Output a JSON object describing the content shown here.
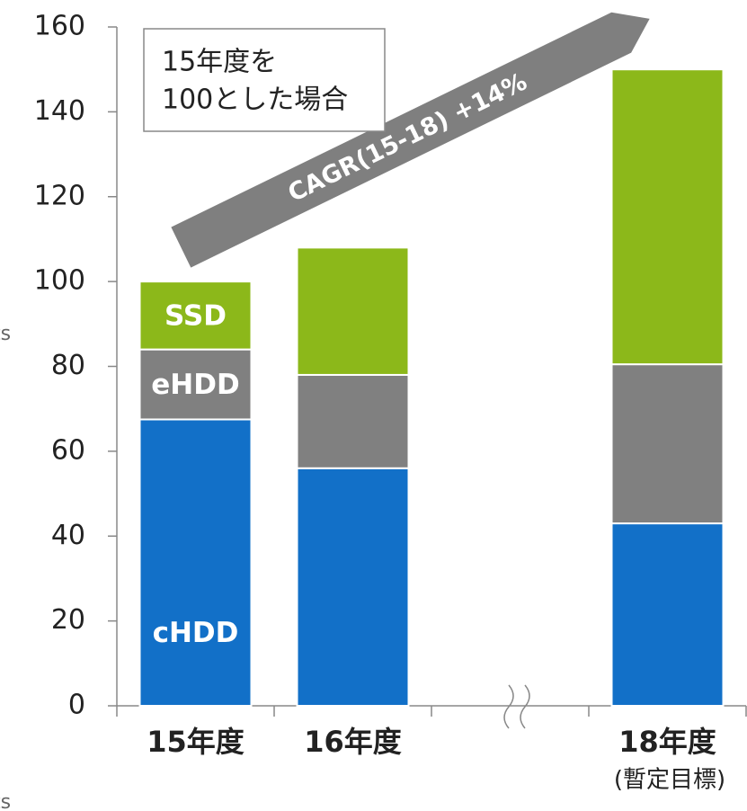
{
  "chart_data": {
    "type": "stacked_bar",
    "categories": [
      "15年度",
      "16年度",
      null,
      "18年度"
    ],
    "series": [
      {
        "name": "cHDD",
        "color": "#1270c8",
        "values": [
          67.5,
          56,
          null,
          43
        ]
      },
      {
        "name": "eHDD",
        "color": "#808080",
        "values": [
          16.5,
          22,
          null,
          37.5
        ]
      },
      {
        "name": "SSD",
        "color": "#8cb81a",
        "values": [
          16,
          30,
          null,
          69.5
        ]
      }
    ],
    "ylim": [
      0,
      160
    ],
    "yticks": [
      0,
      20,
      40,
      60,
      80,
      100,
      120,
      140,
      160
    ],
    "annotations": {
      "box": [
        "15年度を",
        "100とした場合"
      ],
      "arrow": "CAGR(15-18) +14%",
      "category_note": "(暫定目標)",
      "cut_left": [
        "ts",
        "ts"
      ]
    }
  }
}
